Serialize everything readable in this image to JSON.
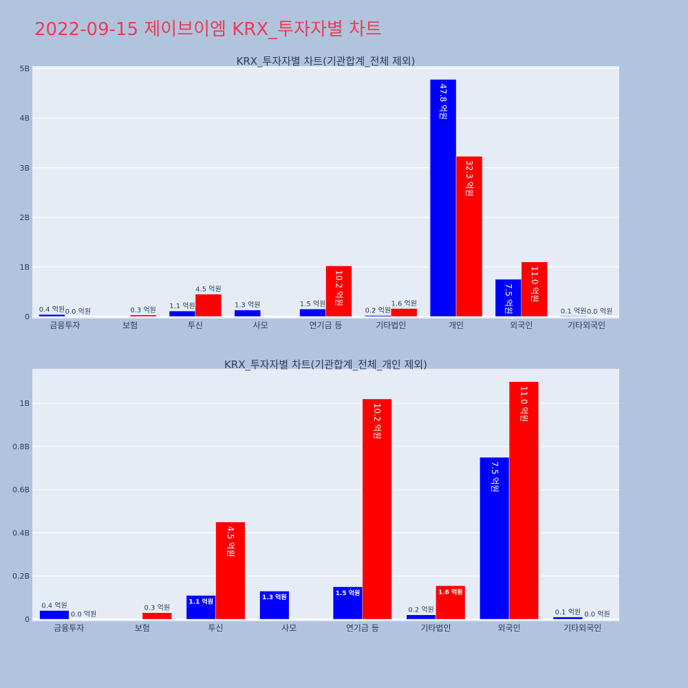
{
  "page_title": "2022-09-15 제이브이엠 KRX_투자자별 차트",
  "colors": {
    "buy": "#0000ff",
    "sell": "#ff0000",
    "plot_bg": "#e5ecf6",
    "page_bg": "#b0c4de",
    "title": "#ef3b56"
  },
  "chart_data": [
    {
      "type": "bar",
      "title": "KRX_투자자별 차트(기관합계_전체 제외)",
      "categories": [
        "금융투자",
        "보험",
        "투신",
        "사모",
        "연기금 등",
        "기타법인",
        "개인",
        "외국인",
        "기타외국인"
      ],
      "series": [
        {
          "color": "#0000ff",
          "values": [
            0.04,
            0,
            0.11,
            0.13,
            0.15,
            0.02,
            4.78,
            0.75,
            0.01
          ],
          "labels": [
            "0.4 억원",
            "",
            "1.1 억원",
            "1.3 억원",
            "1.5 억원",
            "0.2 억원",
            "47.8 억원",
            "7.5 억원",
            "0.1 억원"
          ]
        },
        {
          "color": "#ff0000",
          "values": [
            0.0,
            0.03,
            0.45,
            0,
            1.02,
            0.16,
            3.23,
            1.1,
            0.0
          ],
          "labels": [
            "0.0 억원",
            "0.3 억원",
            "4.5 억원",
            "",
            "10.2 억원",
            "1.6 억원",
            "32.3 억원",
            "11.0 억원",
            "0.0 억원"
          ]
        }
      ],
      "yticks": [
        0,
        1,
        2,
        3,
        4,
        5
      ],
      "ytick_labels": [
        "0",
        "1B",
        "2B",
        "3B",
        "4B",
        "5B"
      ],
      "ylim": [
        0,
        5.05
      ],
      "grid": true
    },
    {
      "type": "bar",
      "title": "KRX_투자자별 차트(기관합계_전체_개인 제외)",
      "categories": [
        "금융투자",
        "보험",
        "투신",
        "사모",
        "연기금 등",
        "기타법인",
        "외국인",
        "기타외국인"
      ],
      "series": [
        {
          "color": "#0000ff",
          "values": [
            0.04,
            0,
            0.11,
            0.13,
            0.15,
            0.02,
            0.75,
            0.01
          ],
          "labels": [
            "0.4 억원",
            "",
            "1.1 억원",
            "1.3 억원",
            "1.5 억원",
            "0.2 억원",
            "7.5 억원",
            "0.1 억원"
          ]
        },
        {
          "color": "#ff0000",
          "values": [
            0.0,
            0.03,
            0.45,
            0,
            1.02,
            0.155,
            1.1,
            0.0
          ],
          "labels": [
            "0.0 억원",
            "0.3 억원",
            "4.5 억원",
            "",
            "10.2 억원",
            "1.6 억원",
            "11.0 억원",
            "0.0 억원"
          ]
        }
      ],
      "yticks": [
        0,
        0.2,
        0.4,
        0.6,
        0.8,
        1.0
      ],
      "ytick_labels": [
        "0",
        "0.2B",
        "0.4B",
        "0.6B",
        "0.8B",
        "1B"
      ],
      "ylim": [
        0,
        1.16
      ],
      "grid": true
    }
  ]
}
